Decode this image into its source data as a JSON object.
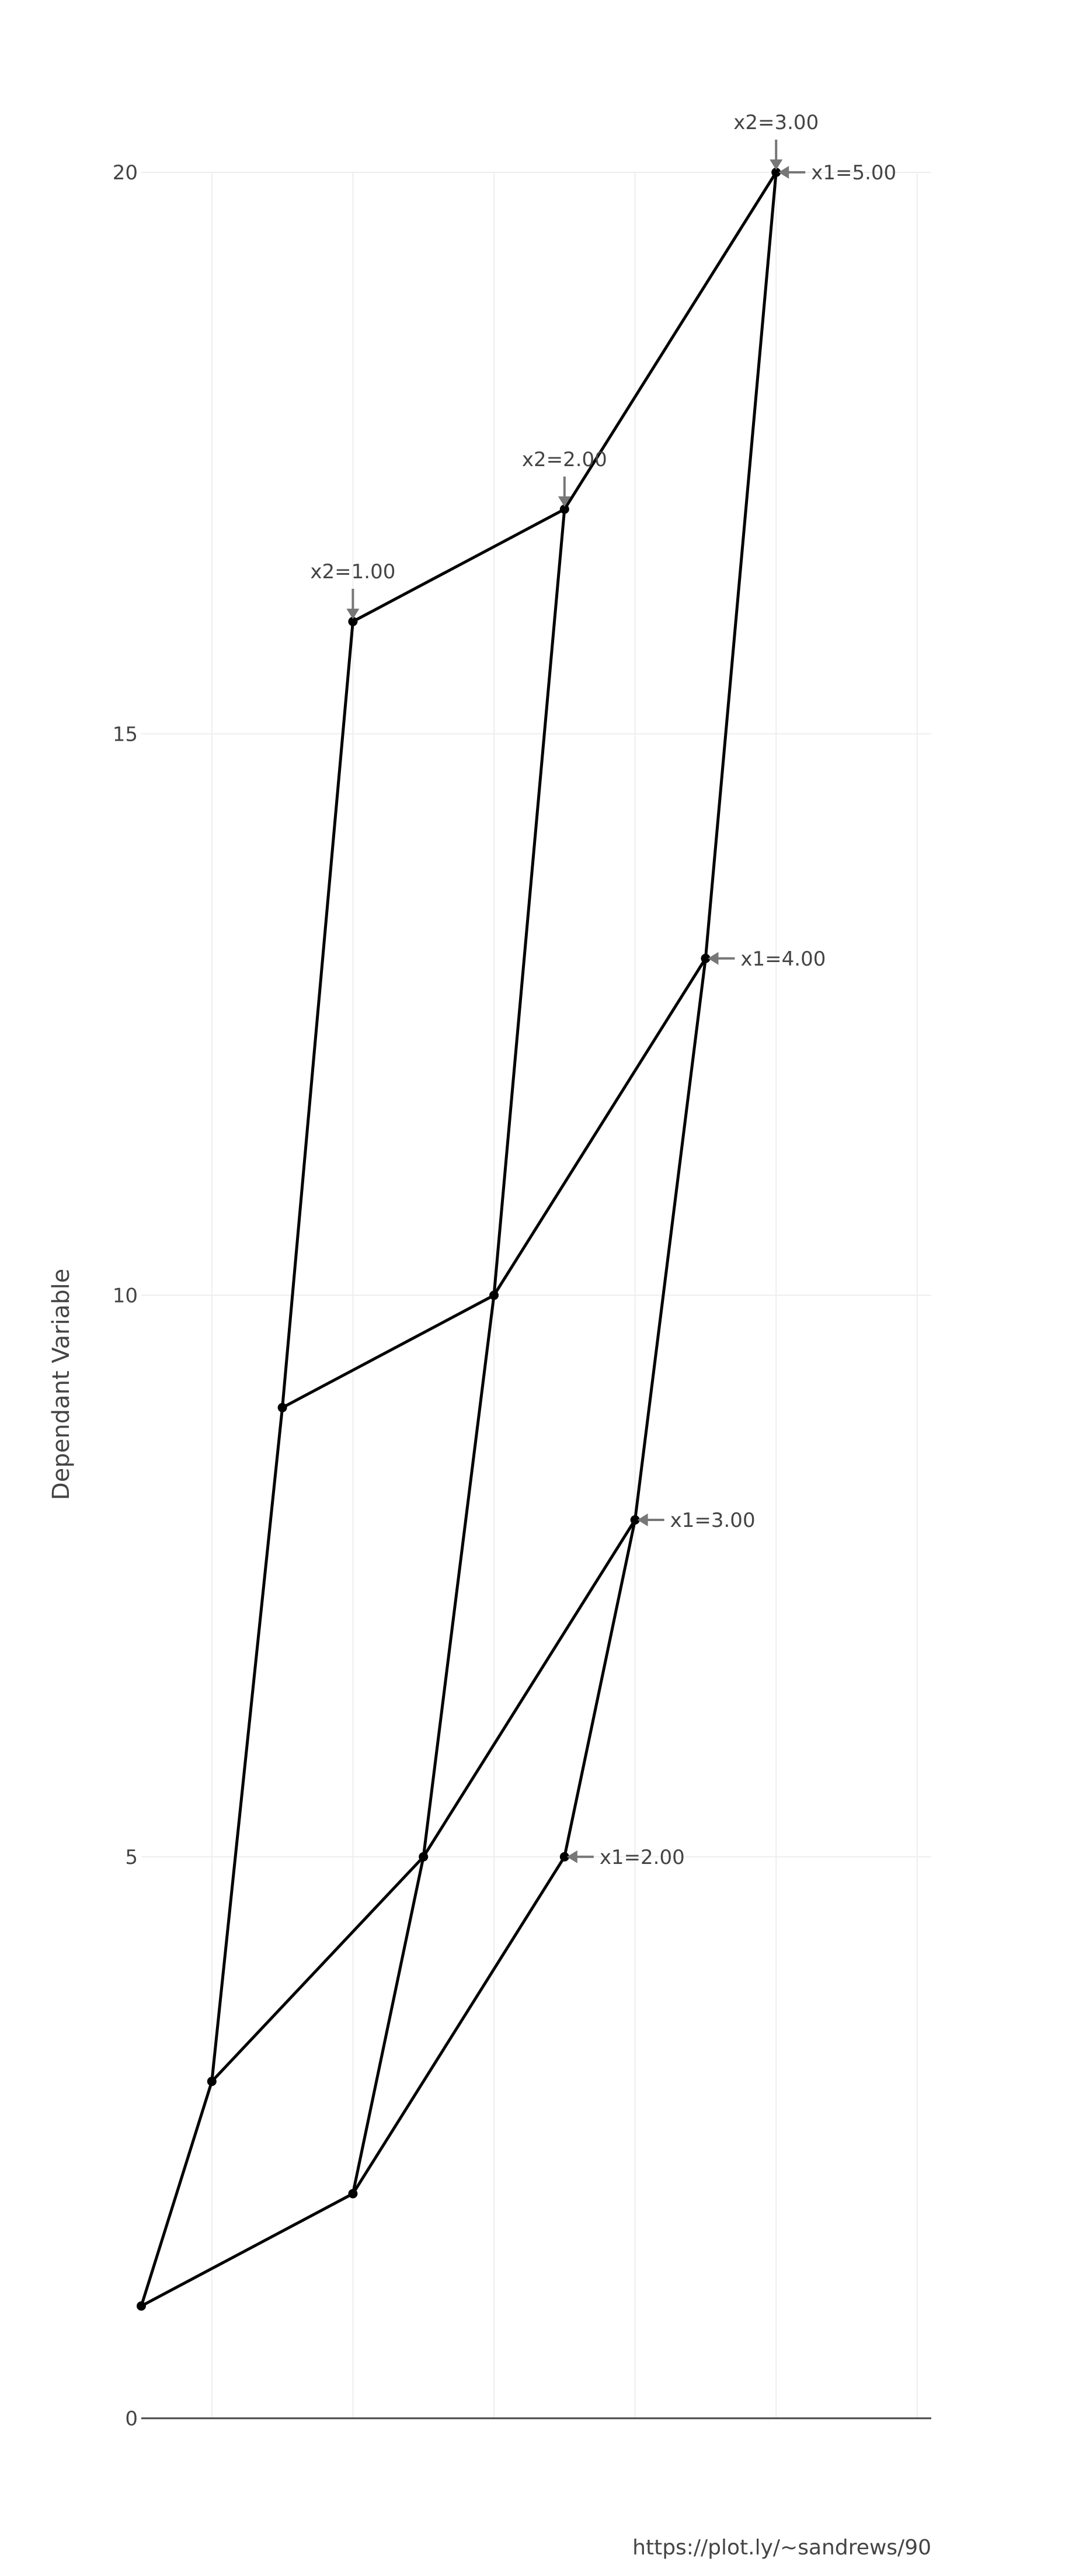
{
  "chart_data": {
    "type": "line",
    "title": "",
    "xlabel": "",
    "ylabel": "Dependant Variable",
    "xlim": [
      -0.5,
      5.1
    ],
    "ylim": [
      0,
      20
    ],
    "y_ticks": [
      0,
      5,
      10,
      15,
      20
    ],
    "x_gridlines": [
      0,
      1,
      2,
      3,
      4,
      5
    ],
    "grid": true,
    "legend": "none",
    "colors": {
      "line": "#000000",
      "grid": "#eeeeee",
      "zero_line": "#444444",
      "annotation_arrow": "#777777",
      "text": "#444444"
    },
    "series": [
      {
        "x": [
          -0.5,
          0.0,
          0.5,
          1.0
        ],
        "y": [
          1,
          3,
          9,
          16
        ]
      },
      {
        "x": [
          1.0,
          1.5,
          2.0,
          2.5
        ],
        "y": [
          2,
          5,
          10,
          17
        ]
      },
      {
        "x": [
          2.5,
          3.0,
          3.5,
          4.0
        ],
        "y": [
          5,
          8,
          13,
          20
        ]
      },
      {
        "x": [
          -0.5,
          1.0,
          2.5
        ],
        "y": [
          1,
          2,
          5
        ]
      },
      {
        "x": [
          0.0,
          1.5,
          3.0
        ],
        "y": [
          3,
          5,
          8
        ]
      },
      {
        "x": [
          0.5,
          2.0,
          3.5
        ],
        "y": [
          9,
          10,
          13
        ]
      },
      {
        "x": [
          1.0,
          2.5,
          4.0
        ],
        "y": [
          16,
          17,
          20
        ]
      }
    ],
    "annotations": [
      {
        "text": "x1=2.00",
        "x": 2.5,
        "y": 5,
        "side": "right"
      },
      {
        "text": "x1=3.00",
        "x": 3.0,
        "y": 8,
        "side": "right"
      },
      {
        "text": "x1=4.00",
        "x": 3.5,
        "y": 13,
        "side": "right"
      },
      {
        "text": "x1=5.00",
        "x": 4.0,
        "y": 20,
        "side": "right"
      },
      {
        "text": "x2=1.00",
        "x": 1.0,
        "y": 16,
        "side": "top"
      },
      {
        "text": "x2=2.00",
        "x": 2.5,
        "y": 17,
        "side": "top"
      },
      {
        "text": "x2=3.00",
        "x": 4.0,
        "y": 20,
        "side": "top"
      }
    ]
  },
  "credit": "https://plot.ly/~sandrews/90"
}
